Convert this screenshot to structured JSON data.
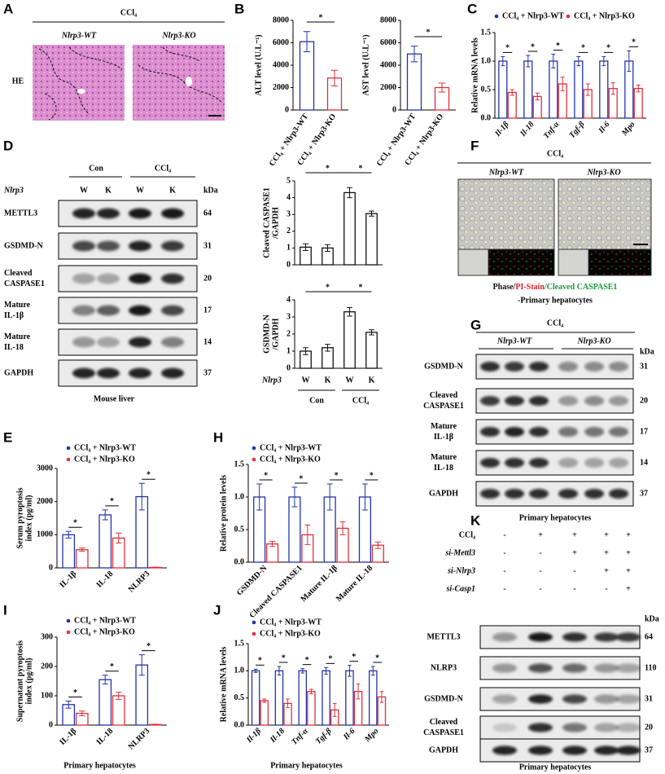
{
  "panel_letters": [
    "A",
    "B",
    "C",
    "D",
    "E",
    "F",
    "G",
    "H",
    "I",
    "J",
    "K"
  ],
  "panel_a": {
    "title": "CCl₄",
    "columns": [
      "Nlrp3-WT",
      "Nlrp3-KO"
    ],
    "row": "HE"
  },
  "panel_d_blot": {
    "groups": [
      "Con",
      "CCl₄"
    ],
    "genotype": "Nlrp3",
    "lanes": [
      "W",
      "K",
      "W",
      "K"
    ],
    "unit": "kDa",
    "rows": [
      {
        "label": [
          "METTL3"
        ],
        "kda": 64
      },
      {
        "label": [
          "GSDMD-N"
        ],
        "kda": 31
      },
      {
        "label": [
          "Cleaved",
          "CASPASE1"
        ],
        "kda": 20
      },
      {
        "label": [
          "Mature",
          "IL-1β"
        ],
        "kda": 17
      },
      {
        "label": [
          "Mature",
          "IL-18"
        ],
        "kda": 14
      },
      {
        "label": [
          "GAPDH"
        ],
        "kda": 37
      }
    ],
    "caption": "Mouse liver"
  },
  "panel_f": {
    "title": "CCl₄",
    "columns": [
      "Nlrp3-WT",
      "Nlrp3-KO"
    ],
    "caption": [
      "Phase/",
      "PI-Stain",
      "/Cleaved CASPASE1"
    ],
    "caption_colors": [
      "#111111",
      "#e0202a",
      "#1a9a3a"
    ],
    "subcaption": "-Primary hepatocytes"
  },
  "panel_g": {
    "title": "CCl₄",
    "groups": [
      "Nlrp3-WT",
      "Nlrp3-KO"
    ],
    "unit": "kDa",
    "rows": [
      {
        "label": [
          "GSDMD-N"
        ],
        "kda": 31
      },
      {
        "label": [
          "Cleaved",
          "CASPASE1"
        ],
        "kda": 20
      },
      {
        "label": [
          "Mature",
          "IL-1β"
        ],
        "kda": 17
      },
      {
        "label": [
          "Mature",
          "IL-18"
        ],
        "kda": 14
      },
      {
        "label": [
          "GAPDH"
        ],
        "kda": 37
      }
    ],
    "caption": "Primary hepatocytes"
  },
  "panel_k": {
    "conditions": [
      {
        "label": "CCl₄",
        "marks": [
          "-",
          "+",
          "+",
          "+",
          "+"
        ]
      },
      {
        "label": "si-Mettl3",
        "marks": [
          "-",
          "-",
          "+",
          "+",
          "+"
        ]
      },
      {
        "label": "si-Nlrp3",
        "marks": [
          "-",
          "-",
          "-",
          "+",
          "+"
        ]
      },
      {
        "label": "si-Casp1",
        "marks": [
          "-",
          "-",
          "-",
          "-",
          "+"
        ]
      }
    ],
    "unit": "kDa",
    "rows": [
      {
        "label": [
          "METTL3"
        ],
        "kda": 64
      },
      {
        "label": [
          "NLRP3"
        ],
        "kda": 110
      },
      {
        "label": [
          "GSDMD-N"
        ],
        "kda": 31
      },
      {
        "label": [
          "Cleaved",
          "CASPASE1"
        ],
        "kda": 20
      },
      {
        "label": [
          "GAPDH"
        ],
        "kda": 37
      }
    ],
    "caption": "Primary hepatocytes"
  },
  "chart_data": [
    {
      "type": "bar",
      "ylabel": [
        "ALT level (U.L⁻¹)"
      ],
      "categories": [
        "CCl₄ + Nlrp3-WT",
        "CCl₄ + Nlrp3-KO"
      ],
      "values": [
        6100,
        2850
      ],
      "errors": [
        900,
        700
      ],
      "colors": [
        "#2233aa",
        "#e0303a"
      ],
      "ylim": [
        0,
        8000
      ],
      "yticks": [
        0,
        2000,
        4000,
        6000,
        8000
      ],
      "annotations": [
        "*"
      ]
    },
    {
      "type": "bar",
      "ylabel": [
        "AST level (U.L⁻¹)"
      ],
      "categories": [
        "CCl₄ + Nlrp3-WT",
        "CCl₄ + Nlrp3-KO"
      ],
      "values": [
        5000,
        2000
      ],
      "errors": [
        700,
        400
      ],
      "colors": [
        "#2233aa",
        "#e0303a"
      ],
      "ylim": [
        0,
        8000
      ],
      "yticks": [
        0,
        2000,
        4000,
        6000,
        8000
      ],
      "annotations": [
        "*"
      ]
    },
    {
      "type": "bar",
      "ylabel": [
        "Relative mRNA levels"
      ],
      "categories": [
        "Il-1β",
        "Il-18",
        "Tnf-α",
        "Tgf-β",
        "Il-6",
        "Mpo"
      ],
      "series": [
        {
          "name": "CCl₄ + Nlrp3-WT",
          "color": "#2233aa",
          "values": [
            1,
            1,
            1,
            1,
            1,
            1
          ],
          "errors": [
            0.08,
            0.1,
            0.12,
            0.08,
            0.08,
            0.18
          ]
        },
        {
          "name": "CCl₄ + Nlrp3-KO",
          "color": "#e0303a",
          "values": [
            0.45,
            0.38,
            0.6,
            0.5,
            0.52,
            0.52
          ],
          "errors": [
            0.05,
            0.06,
            0.12,
            0.1,
            0.1,
            0.06
          ]
        }
      ],
      "ylim": [
        0,
        1.5
      ],
      "yticks": [
        {
          "value": 0,
          "label": "0.0"
        },
        0.5,
        {
          "value": 1,
          "label": "1.0"
        },
        1.5
      ],
      "annotations": [
        "*",
        "*",
        "*",
        "*",
        "*",
        "*"
      ]
    },
    {
      "type": "bar",
      "ylabel": [
        "Cleaved CASPASE1",
        "/GAPDH"
      ],
      "categories": [
        null,
        null,
        null,
        null
      ],
      "values": [
        1.05,
        1.0,
        4.3,
        3.05
      ],
      "errors": [
        0.2,
        0.2,
        0.3,
        0.15
      ],
      "color": "#111111",
      "ylim": [
        0,
        5
      ],
      "yticks": [
        0,
        1,
        2,
        3,
        4,
        5
      ],
      "annotations": [
        "*",
        "*"
      ]
    },
    {
      "type": "bar",
      "ylabel": [
        "GSDMD-N",
        "/GAPDH"
      ],
      "categories": [
        "W",
        "K",
        "W",
        "K"
      ],
      "row_label": "Nlrp3",
      "group_labels": [
        "Con",
        "CCl₄"
      ],
      "values": [
        1.0,
        1.2,
        3.3,
        2.1
      ],
      "errors": [
        0.2,
        0.2,
        0.25,
        0.15
      ],
      "color": "#111111",
      "ylim": [
        0,
        4
      ],
      "yticks": [
        0,
        1,
        2,
        3,
        4
      ],
      "annotations": [
        "*",
        "*"
      ]
    },
    {
      "type": "bar",
      "ylabel": [
        "Serum pyroptosis",
        "index (pg/ml)"
      ],
      "categories": [
        "IL-1β",
        "IL-18",
        "NLRP3"
      ],
      "series": [
        {
          "name": "CCl₄ + Nlrp3-WT",
          "color": "#2233aa",
          "values": [
            1000,
            1600,
            2150
          ],
          "errors": [
            100,
            150,
            400
          ]
        },
        {
          "name": "CCl₄ + Nlrp3-KO",
          "color": "#e0303a",
          "values": [
            550,
            900,
            15
          ],
          "errors": [
            50,
            150,
            5
          ]
        }
      ],
      "ylim": [
        0,
        3000
      ],
      "yticks": [
        0,
        1000,
        2000,
        3000
      ],
      "annotations": [
        "*",
        "*",
        "*"
      ]
    },
    {
      "type": "bar",
      "ylabel": [
        "Relative protein levels"
      ],
      "categories": [
        "GSDMD-N",
        "Cleaved CASPASE1",
        "Mature IL-1β",
        "Mature IL-18"
      ],
      "series": [
        {
          "name": "CCl₄ + Nlrp3-WT",
          "color": "#2233aa",
          "values": [
            1,
            1,
            1,
            1
          ],
          "errors": [
            0.2,
            0.15,
            0.2,
            0.2
          ]
        },
        {
          "name": "CCl₄ + Nlrp3-KO",
          "color": "#e0303a",
          "values": [
            0.28,
            0.42,
            0.52,
            0.26
          ],
          "errors": [
            0.04,
            0.15,
            0.1,
            0.05
          ]
        }
      ],
      "ylim": [
        0,
        1.5
      ],
      "yticks": [
        {
          "value": 0,
          "label": "0.0"
        },
        0.5,
        {
          "value": 1,
          "label": "1.0"
        },
        1.5
      ],
      "annotations": [
        "*",
        "*",
        "*",
        "*"
      ]
    },
    {
      "type": "bar",
      "ylabel": [
        "Supernatant pyroptosis",
        "index (pg/ml)"
      ],
      "categories": [
        "IL-1β",
        "IL-18",
        "NLRP3"
      ],
      "xlabel": "Primary hepatocytes",
      "series": [
        {
          "name": "CCl₄ + Nlrp3-WT",
          "color": "#2233aa",
          "values": [
            70,
            155,
            205
          ],
          "errors": [
            12,
            15,
            35
          ]
        },
        {
          "name": "CCl₄ + Nlrp3-KO",
          "color": "#e0303a",
          "values": [
            40,
            100,
            2
          ],
          "errors": [
            8,
            12,
            1
          ]
        }
      ],
      "ylim": [
        0,
        300
      ],
      "yticks": [
        0,
        100,
        200,
        300
      ],
      "annotations": [
        "*",
        "*",
        "*"
      ]
    },
    {
      "type": "bar",
      "ylabel": [
        "Relative mRNA levels"
      ],
      "categories": [
        "Il-1β",
        "Il-18",
        "Tnf-α",
        "Tgf-β",
        "Il-6",
        "Mpo"
      ],
      "xlabel": "Primary hepatocytes",
      "series": [
        {
          "name": "CCl₄ + Nlrp3-WT",
          "color": "#2233aa",
          "values": [
            1,
            1,
            1,
            1,
            1,
            1
          ],
          "errors": [
            0.03,
            0.08,
            0.04,
            0.06,
            0.1,
            0.08
          ]
        },
        {
          "name": "CCl₄ + Nlrp3-KO",
          "color": "#e0303a",
          "values": [
            0.45,
            0.4,
            0.62,
            0.28,
            0.62,
            0.52
          ],
          "errors": [
            0.03,
            0.08,
            0.04,
            0.12,
            0.14,
            0.1
          ]
        }
      ],
      "ylim": [
        0,
        1.5
      ],
      "yticks": [
        {
          "value": 0,
          "label": "0.0"
        },
        0.5,
        {
          "value": 1,
          "label": "1.0"
        },
        1.5
      ],
      "annotations": [
        "*",
        "*",
        "*",
        "*",
        "*",
        "*"
      ]
    }
  ]
}
